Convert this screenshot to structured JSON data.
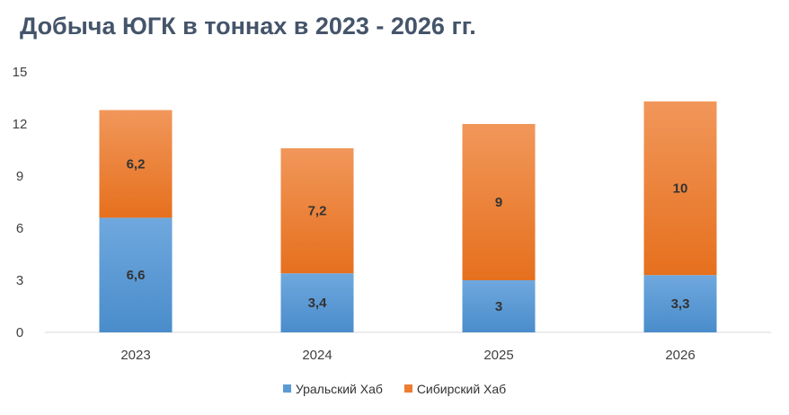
{
  "chart_data": {
    "type": "bar",
    "stacked": true,
    "title": "Добыча ЮГК в тоннах в 2023 - 2026 гг.",
    "categories": [
      "2023",
      "2024",
      "2025",
      "2026"
    ],
    "series": [
      {
        "name": "Уральский Хаб",
        "values": [
          6.6,
          3.4,
          3,
          3.3
        ],
        "labels": [
          "6,6",
          "3,4",
          "3",
          "3,3"
        ],
        "color": "#5b9bd5"
      },
      {
        "name": "Сибирский Хаб",
        "values": [
          6.2,
          7.2,
          9,
          10
        ],
        "labels": [
          "6,2",
          "7,2",
          "9",
          "10"
        ],
        "color": "#ed7d31"
      }
    ],
    "ylim": [
      0,
      15
    ],
    "yticks": [
      0,
      3,
      6,
      9,
      12,
      15
    ],
    "grid": false,
    "legend": "bottom"
  }
}
